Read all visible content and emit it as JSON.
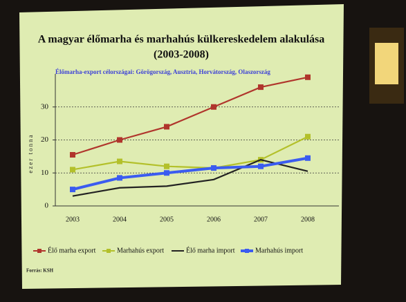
{
  "chart_data": {
    "type": "line",
    "title": "A magyar élőmarha és marhahús külkereskedelem alakulása",
    "period": "(2003-2008)",
    "subtitle": "Élőmarha-export célországai: Görögország, Ausztria, Horvátország, Olaszország",
    "y_label": "ezer tonna",
    "source": "Forrás: KSH",
    "categories": [
      "2003",
      "2004",
      "2005",
      "2006",
      "2007",
      "2008"
    ],
    "series": [
      {
        "name": "Élő marha export",
        "color": "#b0352c",
        "marker": true,
        "values": [
          15.5,
          20,
          24,
          30,
          36,
          39
        ]
      },
      {
        "name": "Marhahús export",
        "color": "#b3c02a",
        "marker": true,
        "values": [
          11,
          13.5,
          12,
          11.5,
          14,
          21
        ]
      },
      {
        "name": "Élő marha import",
        "color": "#222222",
        "marker": false,
        "values": [
          3,
          5.5,
          6,
          8,
          14,
          10.5
        ]
      },
      {
        "name": "Marhahús import",
        "color": "#3b5cf0",
        "marker": true,
        "values": [
          5,
          8.5,
          10,
          11.5,
          12,
          14.5
        ]
      }
    ],
    "ylim": [
      0,
      40
    ],
    "yticks": [
      0,
      10,
      20,
      30
    ],
    "grid": true,
    "legend": "bottom"
  }
}
